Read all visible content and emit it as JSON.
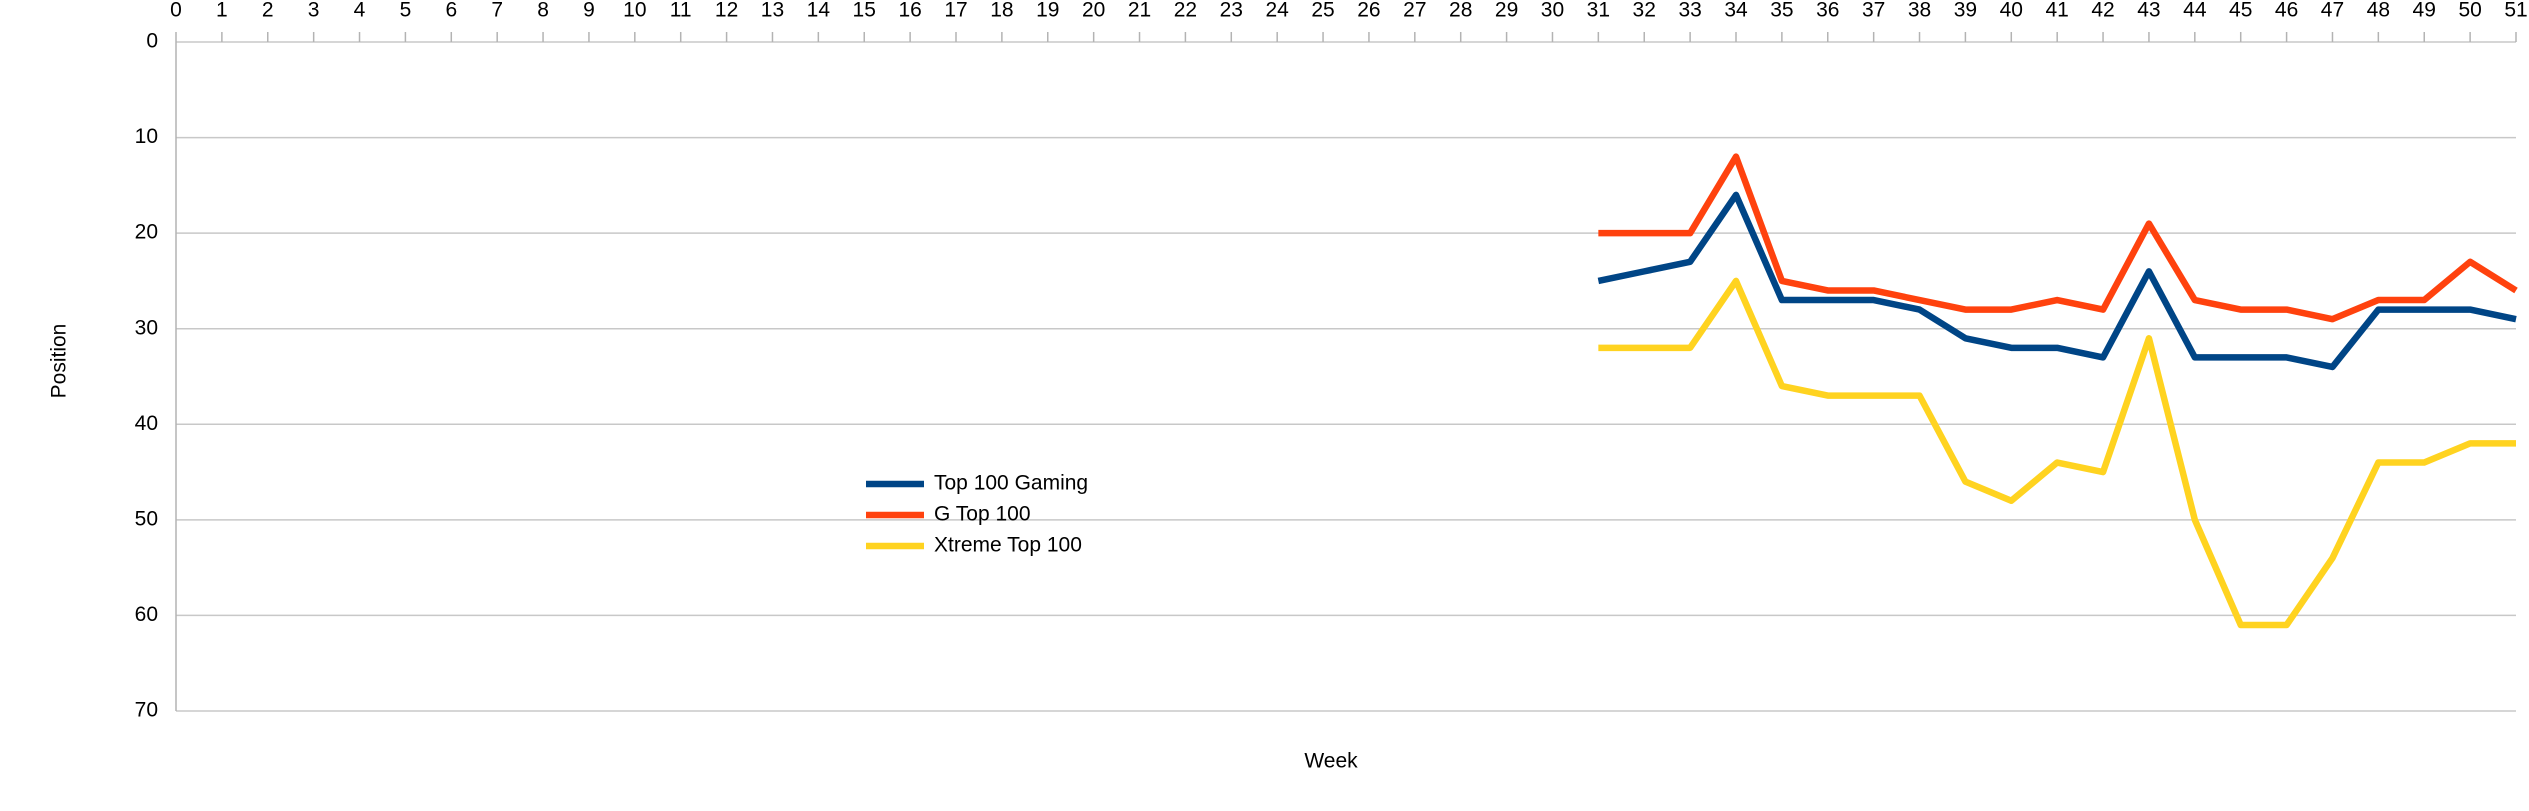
{
  "chart_data": {
    "type": "line",
    "x_label": "Week",
    "y_label": "Position",
    "x": [
      31,
      32,
      33,
      34,
      35,
      36,
      37,
      38,
      39,
      40,
      41,
      42,
      43,
      44,
      45,
      46,
      47,
      48,
      49,
      50,
      51
    ],
    "series": [
      {
        "name": "Top 100 Gaming",
        "color": "#004586",
        "values": [
          25,
          24,
          23,
          16,
          27,
          27,
          27,
          28,
          31,
          32,
          32,
          33,
          24,
          33,
          33,
          33,
          34,
          28,
          28,
          28,
          29
        ]
      },
      {
        "name": "G Top 100",
        "color": "#ff420e",
        "values": [
          20,
          20,
          20,
          12,
          25,
          26,
          26,
          27,
          28,
          28,
          27,
          28,
          19,
          27,
          28,
          28,
          29,
          27,
          27,
          23,
          26
        ]
      },
      {
        "name": "Xtreme Top 100",
        "color": "#ffd320",
        "values": [
          32,
          32,
          32,
          25,
          36,
          37,
          37,
          37,
          46,
          48,
          44,
          45,
          31,
          50,
          61,
          61,
          54,
          44,
          44,
          42,
          42
        ]
      }
    ],
    "xlim": [
      0,
      51
    ],
    "xticks": [
      0,
      1,
      2,
      3,
      4,
      5,
      6,
      7,
      8,
      9,
      10,
      11,
      12,
      13,
      14,
      15,
      16,
      17,
      18,
      19,
      20,
      21,
      22,
      23,
      24,
      25,
      26,
      27,
      28,
      29,
      30,
      31,
      32,
      33,
      34,
      35,
      36,
      37,
      38,
      39,
      40,
      41,
      42,
      43,
      44,
      45,
      46,
      47,
      48,
      49,
      50,
      51
    ],
    "ylim": [
      0,
      70
    ],
    "yticks": [
      0,
      10,
      20,
      30,
      40,
      50,
      60,
      70
    ],
    "y_inverted": true,
    "x_axis_position": "top",
    "grid": true,
    "legend_position": "center-left"
  }
}
